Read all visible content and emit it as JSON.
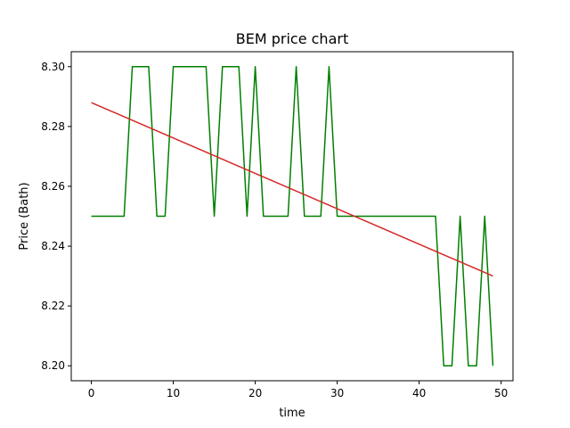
{
  "chart_data": {
    "type": "line",
    "title": "BEM price chart",
    "xlabel": "time",
    "ylabel": "Price (Bath)",
    "xlim": [
      -2.45,
      51.45
    ],
    "ylim": [
      8.195,
      8.305
    ],
    "xticks": [
      0,
      10,
      20,
      30,
      40,
      50
    ],
    "yticks": [
      8.2,
      8.22,
      8.24,
      8.26,
      8.28,
      8.3
    ],
    "ytick_labels": [
      "8.20",
      "8.22",
      "8.24",
      "8.26",
      "8.28",
      "8.30"
    ],
    "grid": false,
    "series": [
      {
        "color": "#008000",
        "x": [
          0,
          1,
          2,
          3,
          4,
          5,
          6,
          7,
          8,
          9,
          10,
          11,
          12,
          13,
          14,
          15,
          16,
          17,
          18,
          19,
          20,
          21,
          22,
          23,
          24,
          25,
          26,
          27,
          28,
          29,
          30,
          31,
          32,
          33,
          34,
          35,
          36,
          37,
          38,
          39,
          40,
          41,
          42,
          43,
          44,
          45,
          46,
          47,
          48,
          49
        ],
        "values": [
          8.25,
          8.25,
          8.25,
          8.25,
          8.25,
          8.3,
          8.3,
          8.3,
          8.25,
          8.25,
          8.3,
          8.3,
          8.3,
          8.3,
          8.3,
          8.25,
          8.3,
          8.3,
          8.3,
          8.25,
          8.3,
          8.25,
          8.25,
          8.25,
          8.25,
          8.3,
          8.25,
          8.25,
          8.25,
          8.3,
          8.25,
          8.25,
          8.25,
          8.25,
          8.25,
          8.25,
          8.25,
          8.25,
          8.25,
          8.25,
          8.25,
          8.25,
          8.25,
          8.2,
          8.2,
          8.25,
          8.2,
          8.2,
          8.25,
          8.2
        ]
      },
      {
        "color": "#d62728",
        "x": [
          0,
          49
        ],
        "values": [
          8.288,
          8.23
        ]
      }
    ]
  }
}
